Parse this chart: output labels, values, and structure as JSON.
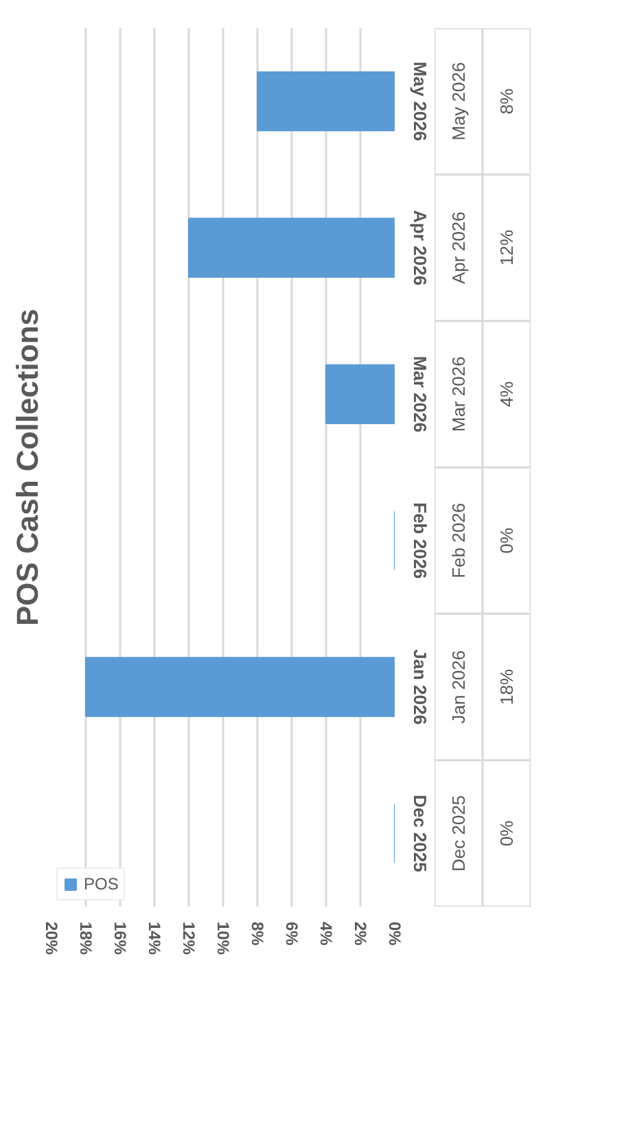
{
  "chart_data": {
    "type": "bar",
    "orientation": "horizontal",
    "title": "POS Cash Collections",
    "categories": [
      "May 2026",
      "Apr 2026",
      "Mar 2026",
      "Feb 2026",
      "Jan 2026",
      "Dec 2025"
    ],
    "series": [
      {
        "name": "POS",
        "color": "#5b9bd5",
        "values": [
          8,
          12,
          4,
          0,
          18,
          0
        ],
        "value_labels": [
          "8%",
          "12%",
          "4%",
          "0%",
          "18%",
          "0%"
        ]
      }
    ],
    "xlim": [
      20,
      0
    ],
    "xticks": [
      {
        "value": 0,
        "label": "0%"
      },
      {
        "value": 2,
        "label": "2%"
      },
      {
        "value": 4,
        "label": "4%"
      },
      {
        "value": 6,
        "label": "6%"
      },
      {
        "value": 8,
        "label": "8%"
      },
      {
        "value": 10,
        "label": "10%"
      },
      {
        "value": 12,
        "label": "12%"
      },
      {
        "value": 14,
        "label": "14%"
      },
      {
        "value": 16,
        "label": "16%"
      },
      {
        "value": 18,
        "label": "18%"
      },
      {
        "value": 20,
        "label": "20%"
      }
    ],
    "grid": "x",
    "legend": "bottom left"
  }
}
